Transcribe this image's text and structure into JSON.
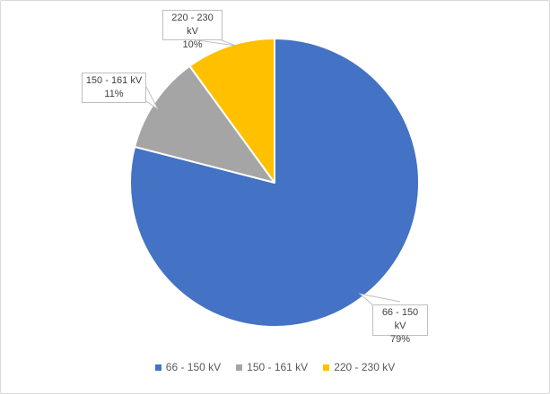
{
  "chart_data": {
    "type": "pie",
    "title": "",
    "slices": [
      {
        "label": "66 - 150 kV",
        "value": 79,
        "pct_label": "79%",
        "color": "#4472C4"
      },
      {
        "label": "150 - 161 kV",
        "value": 11,
        "pct_label": "11%",
        "color": "#A5A5A5"
      },
      {
        "label": "220 - 230 kV",
        "value": 10,
        "pct_label": "10%",
        "color": "#FFC000"
      }
    ],
    "start_angle_deg": 0,
    "direction": "clockwise",
    "data_labels": "category name and percentage in outside callout boxes",
    "legend_position": "bottom",
    "legend_entries": [
      "66 - 150 kV",
      "150 - 161 kV",
      "220 - 230 kV"
    ]
  },
  "colors": {
    "frame_border": "#D9D9D9",
    "callout_border": "#BFBFBF",
    "callout_text": "#404040",
    "legend_text": "#595959",
    "slice_separator": "#FFFFFF",
    "background": "#FFFFFF"
  }
}
